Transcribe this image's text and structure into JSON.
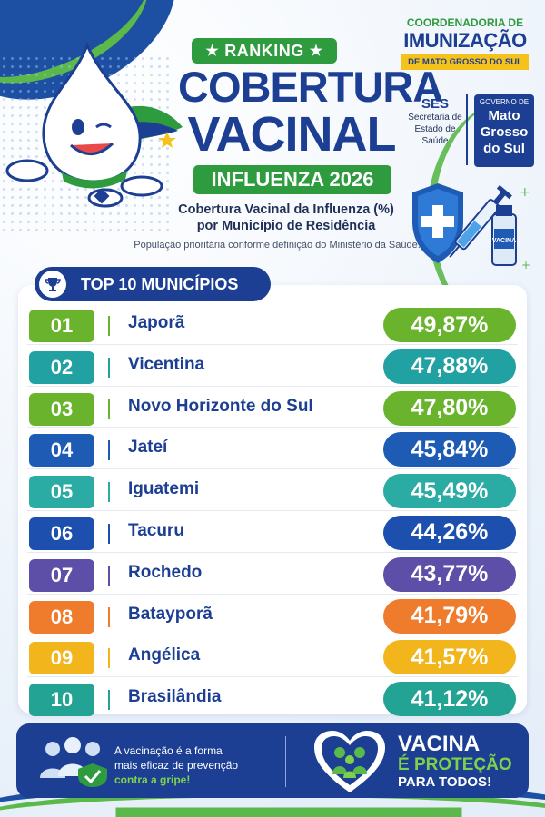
{
  "header": {
    "ranking_label": "RANKING",
    "title_line1": "COBERTURA",
    "title_line2": "VACINAL",
    "campaign_label": "INFLUENZA 2026",
    "subtitle_line1": "Cobertura Vacinal da Influenza (%)",
    "subtitle_line2": "por Município de Residência",
    "note": "População prioritária conforme definição do Ministério da Saúde."
  },
  "logos": {
    "coord_line1": "COORDENADORIA DE",
    "coord_line2": "IMUNIZAÇÃO",
    "coord_line3": "DE MATO GROSSO DO SUL",
    "ses_title": "SES",
    "ses_line1": "Secretaria de",
    "ses_line2": "Estado de",
    "ses_line3": "Saúde",
    "gov_small1": "GOVERNO DE",
    "gov_big1": "Mato",
    "gov_big2": "Grosso",
    "gov_big3": "do Sul",
    "vial_label": "VACINA"
  },
  "ranking": {
    "title": "TOP 10 MUNICÍPIOS",
    "items": [
      {
        "rank": "01",
        "city": "Japorã",
        "pct": "49,87%",
        "color": "#6ab42d"
      },
      {
        "rank": "02",
        "city": "Vicentina",
        "pct": "47,88%",
        "color": "#22a1a3"
      },
      {
        "rank": "03",
        "city": "Novo Horizonte do Sul",
        "pct": "47,80%",
        "color": "#6ab42d"
      },
      {
        "rank": "04",
        "city": "Jateí",
        "pct": "45,84%",
        "color": "#1d5bb5"
      },
      {
        "rank": "05",
        "city": "Iguatemi",
        "pct": "45,49%",
        "color": "#2aaba4"
      },
      {
        "rank": "06",
        "city": "Tacuru",
        "pct": "44,26%",
        "color": "#1d4fae"
      },
      {
        "rank": "07",
        "city": "Rochedo",
        "pct": "43,77%",
        "color": "#5d4ea8"
      },
      {
        "rank": "08",
        "city": "Batayporã",
        "pct": "41,79%",
        "color": "#ef7b2c"
      },
      {
        "rank": "09",
        "city": "Angélica",
        "pct": "41,57%",
        "color": "#f2b51c"
      },
      {
        "rank": "10",
        "city": "Brasilândia",
        "pct": "41,12%",
        "color": "#22a394"
      }
    ]
  },
  "footer": {
    "text_line1": "A vacinação é a forma",
    "text_line2": "mais eficaz de prevenção",
    "text_highlight": "contra a gripe!",
    "slogan_line1": "VACINA",
    "slogan_line2": "É PROTEÇÃO",
    "slogan_line3": "PARA TODOS!"
  },
  "colors": {
    "brand_blue": "#1c3f93",
    "brand_green": "#2e9b3e",
    "accent_yellow": "#f5c11b"
  }
}
